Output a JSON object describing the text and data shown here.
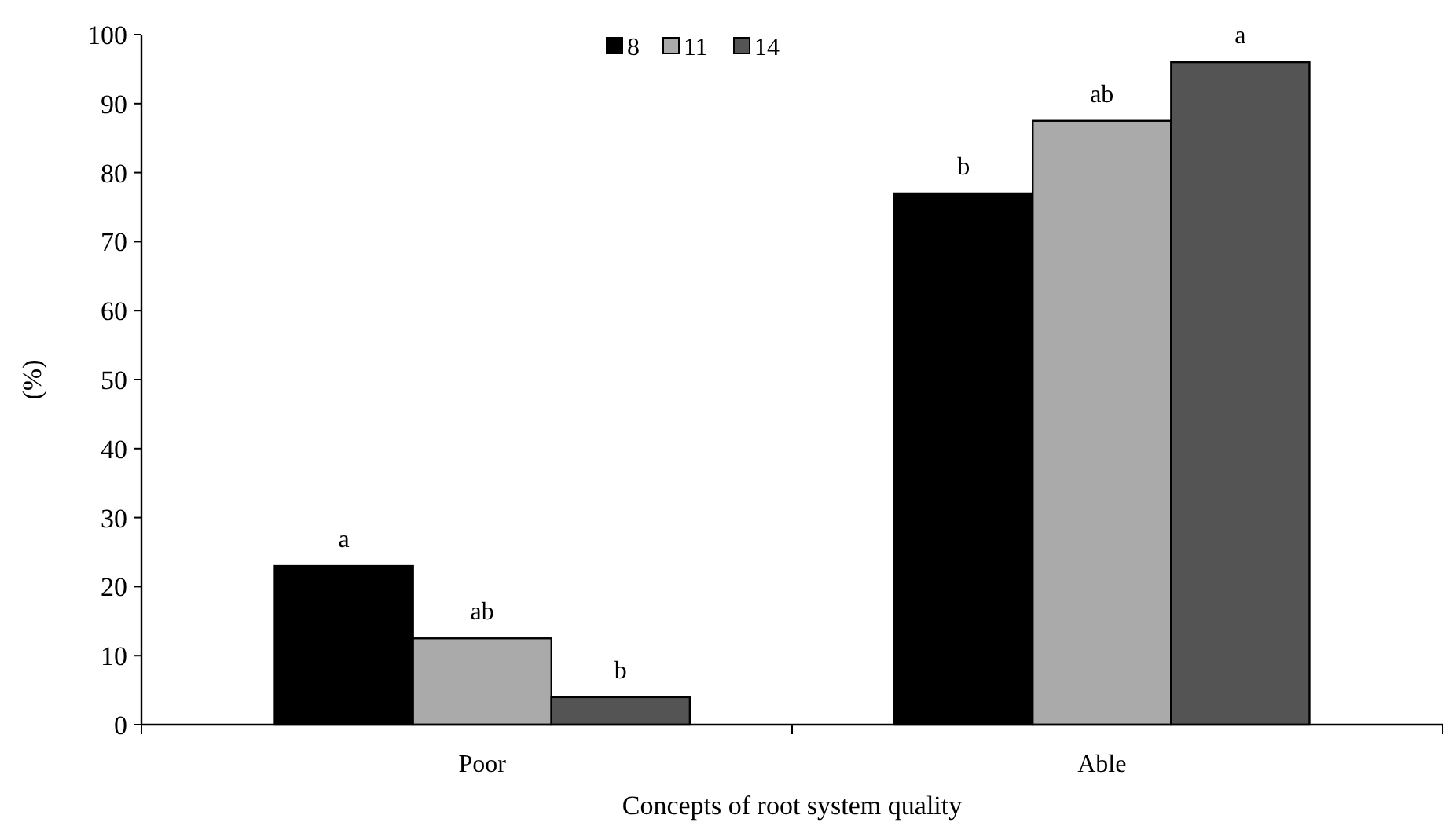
{
  "chart_data": {
    "type": "bar",
    "xlabel": "Concepts of root system quality",
    "ylabel": "(%)",
    "categories": [
      "Poor",
      "Able"
    ],
    "series": [
      {
        "name": "8",
        "color": "#000000",
        "values": [
          23,
          77
        ],
        "value_labels": [
          "a",
          "b"
        ]
      },
      {
        "name": "11",
        "color": "#aaaaaa",
        "values": [
          12.5,
          87.5
        ],
        "value_labels": [
          "ab",
          "ab"
        ]
      },
      {
        "name": "14",
        "color": "#545454",
        "values": [
          4,
          96
        ],
        "value_labels": [
          "b",
          "a"
        ]
      }
    ],
    "ylim": [
      0,
      100
    ],
    "yticks": [
      0,
      10,
      20,
      30,
      40,
      50,
      60,
      70,
      80,
      90,
      100
    ],
    "grid": false,
    "legend": "top"
  }
}
